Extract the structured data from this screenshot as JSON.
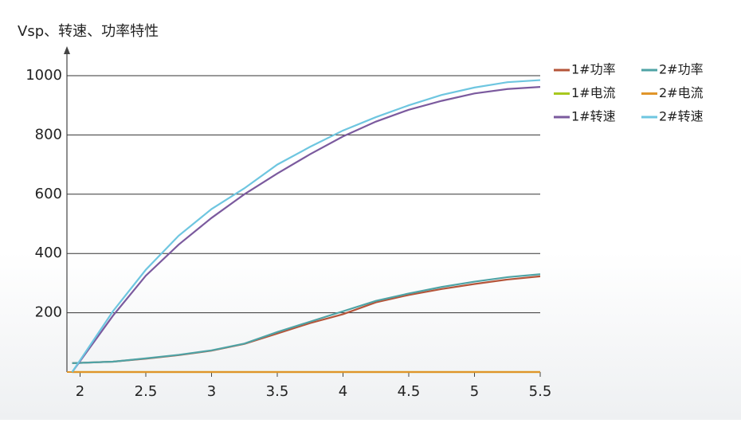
{
  "chart_data": {
    "type": "line",
    "title": "Vsp、转速、功率特性",
    "x": [
      1.94,
      2.25,
      2.5,
      2.75,
      3,
      3.25,
      3.5,
      3.75,
      4,
      4.25,
      4.5,
      4.75,
      5,
      5.25,
      5.5
    ],
    "xlim": [
      1.9,
      5.5
    ],
    "xticks": [
      2,
      2.5,
      3,
      3.5,
      4,
      4.5,
      5,
      5.5
    ],
    "ylim": [
      0,
      1000
    ],
    "yticks": [
      200,
      400,
      600,
      800,
      1000
    ],
    "grid": true,
    "series": [
      {
        "name": "1#功率",
        "color": "#b5553a",
        "values": [
          30,
          35,
          45,
          57,
          72,
          95,
          130,
          165,
          195,
          235,
          260,
          280,
          297,
          312,
          323
        ]
      },
      {
        "name": "2#功率",
        "color": "#4fa3a5",
        "values": [
          30,
          35,
          46,
          58,
          73,
          96,
          135,
          170,
          205,
          240,
          265,
          287,
          305,
          320,
          330
        ]
      },
      {
        "name": "1#电流",
        "color": "#a8c81e",
        "values": [
          0,
          0,
          0,
          0,
          0,
          0,
          0,
          0,
          0,
          0,
          0,
          0,
          0,
          0,
          0
        ]
      },
      {
        "name": "2#电流",
        "color": "#e0952a",
        "values": [
          0,
          0,
          0,
          0,
          0,
          0,
          0,
          0,
          0,
          0,
          0,
          0,
          0,
          0,
          0
        ]
      },
      {
        "name": "1#转速",
        "color": "#7b5a9e",
        "values": [
          0,
          190,
          325,
          430,
          520,
          600,
          670,
          735,
          795,
          845,
          885,
          915,
          940,
          955,
          962
        ]
      },
      {
        "name": "2#转速",
        "color": "#6ec6e0",
        "values": [
          0,
          205,
          345,
          460,
          550,
          620,
          700,
          760,
          815,
          860,
          900,
          935,
          960,
          978,
          985
        ]
      }
    ]
  }
}
